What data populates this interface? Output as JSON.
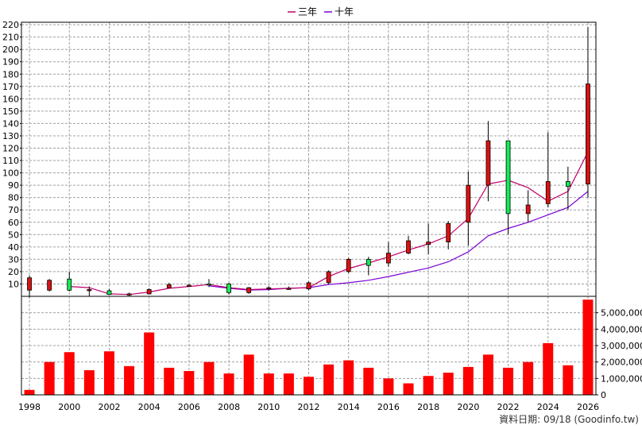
{
  "chart_data": {
    "type": "candlestick",
    "legend": {
      "position": "top-center",
      "items": [
        {
          "label": "三年",
          "color": "#c0006a"
        },
        {
          "label": "十年",
          "color": "#7a00d6"
        }
      ]
    },
    "price_axis": {
      "ylim": [
        0,
        222
      ],
      "ticks": [
        10,
        20,
        30,
        40,
        50,
        60,
        70,
        80,
        90,
        100,
        110,
        120,
        130,
        140,
        150,
        160,
        170,
        180,
        190,
        200,
        210,
        220
      ],
      "side": "left"
    },
    "volume_axis": {
      "ylim": [
        0,
        6000000
      ],
      "ticks": [
        0,
        1000000,
        2000000,
        3000000,
        4000000,
        5000000
      ],
      "tick_labels": [
        "0",
        "1,000,000",
        "2,000,000",
        "3,000,000",
        "4,000,000",
        "5,000,000"
      ],
      "side": "right"
    },
    "x_axis": {
      "range": [
        1997.6,
        2026.4
      ],
      "ticks": [
        1998,
        2000,
        2002,
        2004,
        2006,
        2008,
        2010,
        2012,
        2014,
        2016,
        2018,
        2020,
        2022,
        2024,
        2026
      ],
      "labels": [
        "1998",
        "2000",
        "2002",
        "2004",
        "2006",
        "2008",
        "2010",
        "2012",
        "2014",
        "2016",
        "2018",
        "2020",
        "2022",
        "2024",
        "2026"
      ]
    },
    "grid": true,
    "colors": {
      "up": "#dd1111",
      "down": "#11ee55",
      "volume": "#ff0000",
      "grid": "#a0a0a0"
    },
    "candles": [
      {
        "year": 1998,
        "open": 5,
        "close": 15,
        "high": 17,
        "low": -1
      },
      {
        "year": 1999,
        "open": 5,
        "close": 13,
        "high": 14,
        "low": 4
      },
      {
        "year": 2000,
        "open": 14,
        "close": 5,
        "high": 20,
        "low": 4
      },
      {
        "year": 2001,
        "open": 5,
        "close": 5.5,
        "high": 8,
        "low": 0
      },
      {
        "year": 2002,
        "open": 4.5,
        "close": 1.5,
        "high": 6,
        "low": 1
      },
      {
        "year": 2003,
        "open": 1.5,
        "close": 2,
        "high": 3,
        "low": 0
      },
      {
        "year": 2004,
        "open": 2,
        "close": 5.5,
        "high": 6.5,
        "low": 1.5
      },
      {
        "year": 2005,
        "open": 7,
        "close": 9.5,
        "high": 11,
        "low": 6.5
      },
      {
        "year": 2006,
        "open": 8.5,
        "close": 9,
        "high": 10,
        "low": 7.5
      },
      {
        "year": 2007,
        "open": 10,
        "close": 9.5,
        "high": 14,
        "low": 7.5
      },
      {
        "year": 2008,
        "open": 10,
        "close": 3,
        "high": 11,
        "low": 1.5
      },
      {
        "year": 2009,
        "open": 3,
        "close": 7,
        "high": 7.5,
        "low": 2
      },
      {
        "year": 2010,
        "open": 6.5,
        "close": 7,
        "high": 8,
        "low": 4.5
      },
      {
        "year": 2011,
        "open": 6,
        "close": 6.5,
        "high": 8,
        "low": 5.5
      },
      {
        "year": 2012,
        "open": 6,
        "close": 11,
        "high": 12,
        "low": 5
      },
      {
        "year": 2013,
        "open": 11,
        "close": 20,
        "high": 21,
        "low": 10
      },
      {
        "year": 2014,
        "open": 20,
        "close": 30,
        "high": 31,
        "low": 19
      },
      {
        "year": 2015,
        "open": 30,
        "close": 25,
        "high": 32,
        "low": 17
      },
      {
        "year": 2016,
        "open": 27,
        "close": 35,
        "high": 44,
        "low": 24
      },
      {
        "year": 2017,
        "open": 35,
        "close": 45,
        "high": 49,
        "low": 34
      },
      {
        "year": 2018,
        "open": 42,
        "close": 44,
        "high": 59,
        "low": 34
      },
      {
        "year": 2019,
        "open": 44,
        "close": 59,
        "high": 61,
        "low": 38
      },
      {
        "year": 2020,
        "open": 60,
        "close": 90,
        "high": 101,
        "low": 41
      },
      {
        "year": 2021,
        "open": 90,
        "close": 126,
        "high": 142,
        "low": 77
      },
      {
        "year": 2022,
        "open": 126,
        "close": 67,
        "high": 126,
        "low": 50
      },
      {
        "year": 2023,
        "open": 67,
        "close": 74,
        "high": 86,
        "low": 60
      },
      {
        "year": 2024,
        "open": 75,
        "close": 93,
        "high": 133,
        "low": 72
      },
      {
        "year": 2025,
        "open": 93,
        "close": 89,
        "high": 105,
        "low": 70
      },
      {
        "year": 2026,
        "open": 91,
        "close": 172,
        "high": 218,
        "low": 80
      }
    ],
    "ma_three_year": {
      "name": "三年",
      "x": [
        2000,
        2001,
        2002,
        2003,
        2004,
        2005,
        2006,
        2007,
        2008,
        2009,
        2010,
        2011,
        2012,
        2013,
        2014,
        2015,
        2016,
        2017,
        2018,
        2019,
        2020,
        2021,
        2022,
        2023,
        2024,
        2025,
        2026
      ],
      "y": [
        8,
        7,
        2,
        1.5,
        3.5,
        6.5,
        8,
        9.5,
        7,
        5.5,
        6,
        6.5,
        7,
        16,
        22.5,
        27,
        32,
        37.5,
        42.5,
        49,
        63,
        91,
        94,
        88,
        77,
        85,
        117
      ]
    },
    "ma_ten_year": {
      "name": "十年",
      "x": [
        2007,
        2008,
        2009,
        2010,
        2011,
        2012,
        2013,
        2014,
        2015,
        2016,
        2017,
        2018,
        2019,
        2020,
        2021,
        2022,
        2023,
        2024,
        2025,
        2026
      ],
      "y": [
        8.5,
        6.5,
        5,
        5.5,
        6.5,
        7,
        9.5,
        11,
        13,
        16,
        19.5,
        23,
        28,
        36,
        49,
        55,
        60,
        66,
        72,
        85
      ]
    },
    "volume": [
      {
        "year": 1998,
        "value": 300000
      },
      {
        "year": 1999,
        "value": 2000000
      },
      {
        "year": 2000,
        "value": 2600000
      },
      {
        "year": 2001,
        "value": 1500000
      },
      {
        "year": 2002,
        "value": 2650000
      },
      {
        "year": 2003,
        "value": 1750000
      },
      {
        "year": 2004,
        "value": 3800000
      },
      {
        "year": 2005,
        "value": 1650000
      },
      {
        "year": 2006,
        "value": 1450000
      },
      {
        "year": 2007,
        "value": 2000000
      },
      {
        "year": 2008,
        "value": 1300000
      },
      {
        "year": 2009,
        "value": 2450000
      },
      {
        "year": 2010,
        "value": 1300000
      },
      {
        "year": 2011,
        "value": 1300000
      },
      {
        "year": 2012,
        "value": 1100000
      },
      {
        "year": 2013,
        "value": 1850000
      },
      {
        "year": 2014,
        "value": 2100000
      },
      {
        "year": 2015,
        "value": 1650000
      },
      {
        "year": 2016,
        "value": 1000000
      },
      {
        "year": 2017,
        "value": 700000
      },
      {
        "year": 2018,
        "value": 1150000
      },
      {
        "year": 2019,
        "value": 1350000
      },
      {
        "year": 2020,
        "value": 1700000
      },
      {
        "year": 2021,
        "value": 2450000
      },
      {
        "year": 2022,
        "value": 1650000
      },
      {
        "year": 2023,
        "value": 2000000
      },
      {
        "year": 2024,
        "value": 3150000
      },
      {
        "year": 2025,
        "value": 1800000
      },
      {
        "year": 2026,
        "value": 5800000
      }
    ]
  },
  "footer": {
    "credit": "資料日期: 09/18  (Goodinfo.tw)"
  }
}
